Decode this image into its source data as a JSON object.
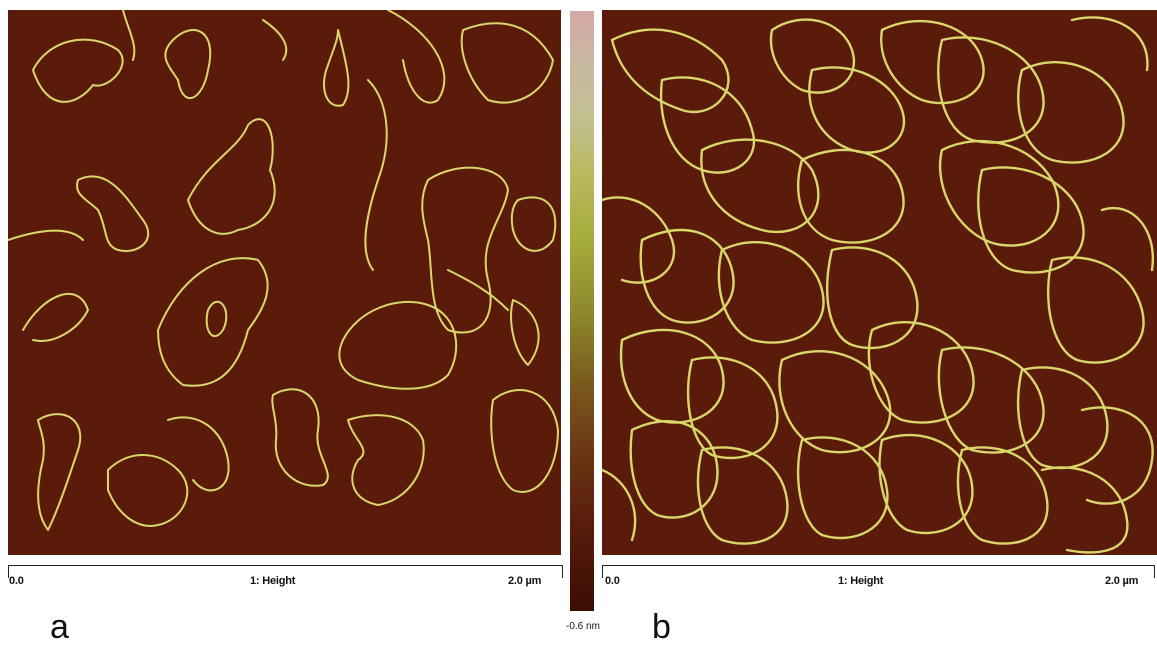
{
  "panels": [
    {
      "letter": "a",
      "scale_start": "0.0",
      "scale_title": "1: Height",
      "scale_end": "2.0 µm",
      "image_description": "AFM height image of sparse DNA loops"
    },
    {
      "letter": "b",
      "scale_start": "0.0",
      "scale_title": "1: Height",
      "scale_end": "2.0 µm",
      "image_description": "AFM height image of dense DNA loops"
    }
  ],
  "colorbar": {
    "min_label": "-0.6 nm"
  },
  "colors": {
    "background": "#5a1b0b",
    "strand": "#d9d66a"
  }
}
